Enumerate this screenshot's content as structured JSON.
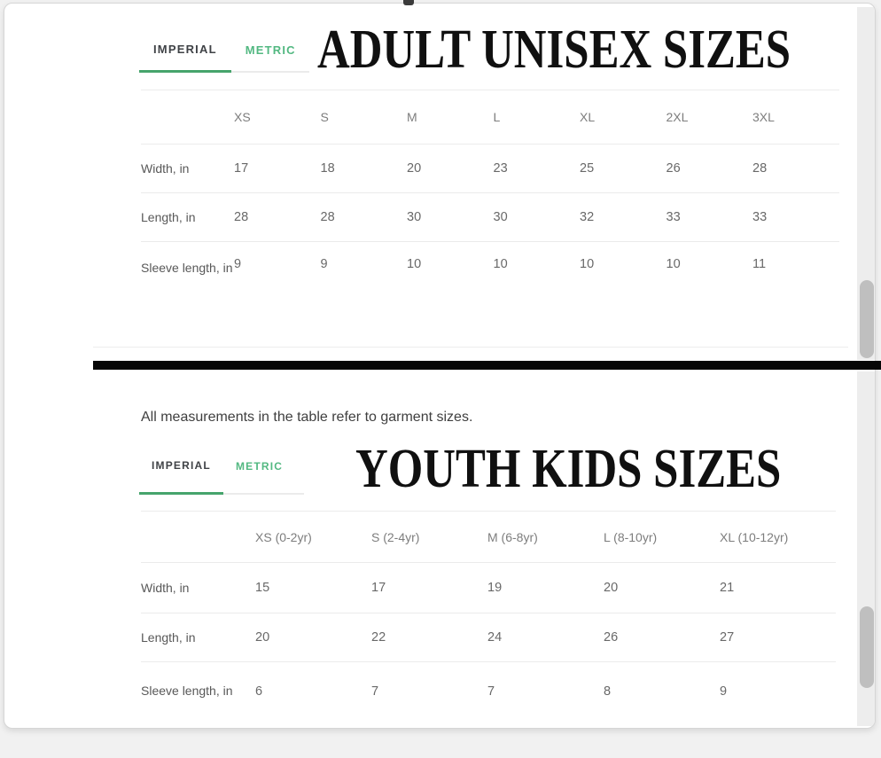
{
  "note": "All measurements in the table refer to garment sizes.",
  "tabs": {
    "imperial": "IMPERIAL",
    "metric": "METRIC"
  },
  "adult": {
    "title": "ADULT UNISEX SIZES",
    "columns": [
      "XS",
      "S",
      "M",
      "L",
      "XL",
      "2XL",
      "3XL"
    ],
    "rows": [
      {
        "label": "Width, in",
        "values": [
          "17",
          "18",
          "20",
          "23",
          "25",
          "26",
          "28"
        ]
      },
      {
        "label": "Length, in",
        "values": [
          "28",
          "28",
          "30",
          "30",
          "32",
          "33",
          "33"
        ]
      },
      {
        "label": "Sleeve length, in",
        "values": [
          "9",
          "9",
          "10",
          "10",
          "10",
          "10",
          "11"
        ]
      }
    ]
  },
  "youth": {
    "title": "YOUTH KIDS SIZES",
    "columns": [
      "XS (0-2yr)",
      "S (2-4yr)",
      "M (6-8yr)",
      "L (8-10yr)",
      "XL (10-12yr)"
    ],
    "rows": [
      {
        "label": "Width, in",
        "values": [
          "15",
          "17",
          "19",
          "20",
          "21"
        ]
      },
      {
        "label": "Length, in",
        "values": [
          "20",
          "22",
          "24",
          "26",
          "27"
        ]
      },
      {
        "label": "Sleeve length, in",
        "values": [
          "6",
          "7",
          "7",
          "8",
          "9"
        ]
      }
    ]
  },
  "colors": {
    "accent_green": "#46a46c",
    "tab_metric_green": "#52b881",
    "divider_black": "#060606",
    "card_background": "#ffffff",
    "page_background": "#f1f1f1"
  }
}
